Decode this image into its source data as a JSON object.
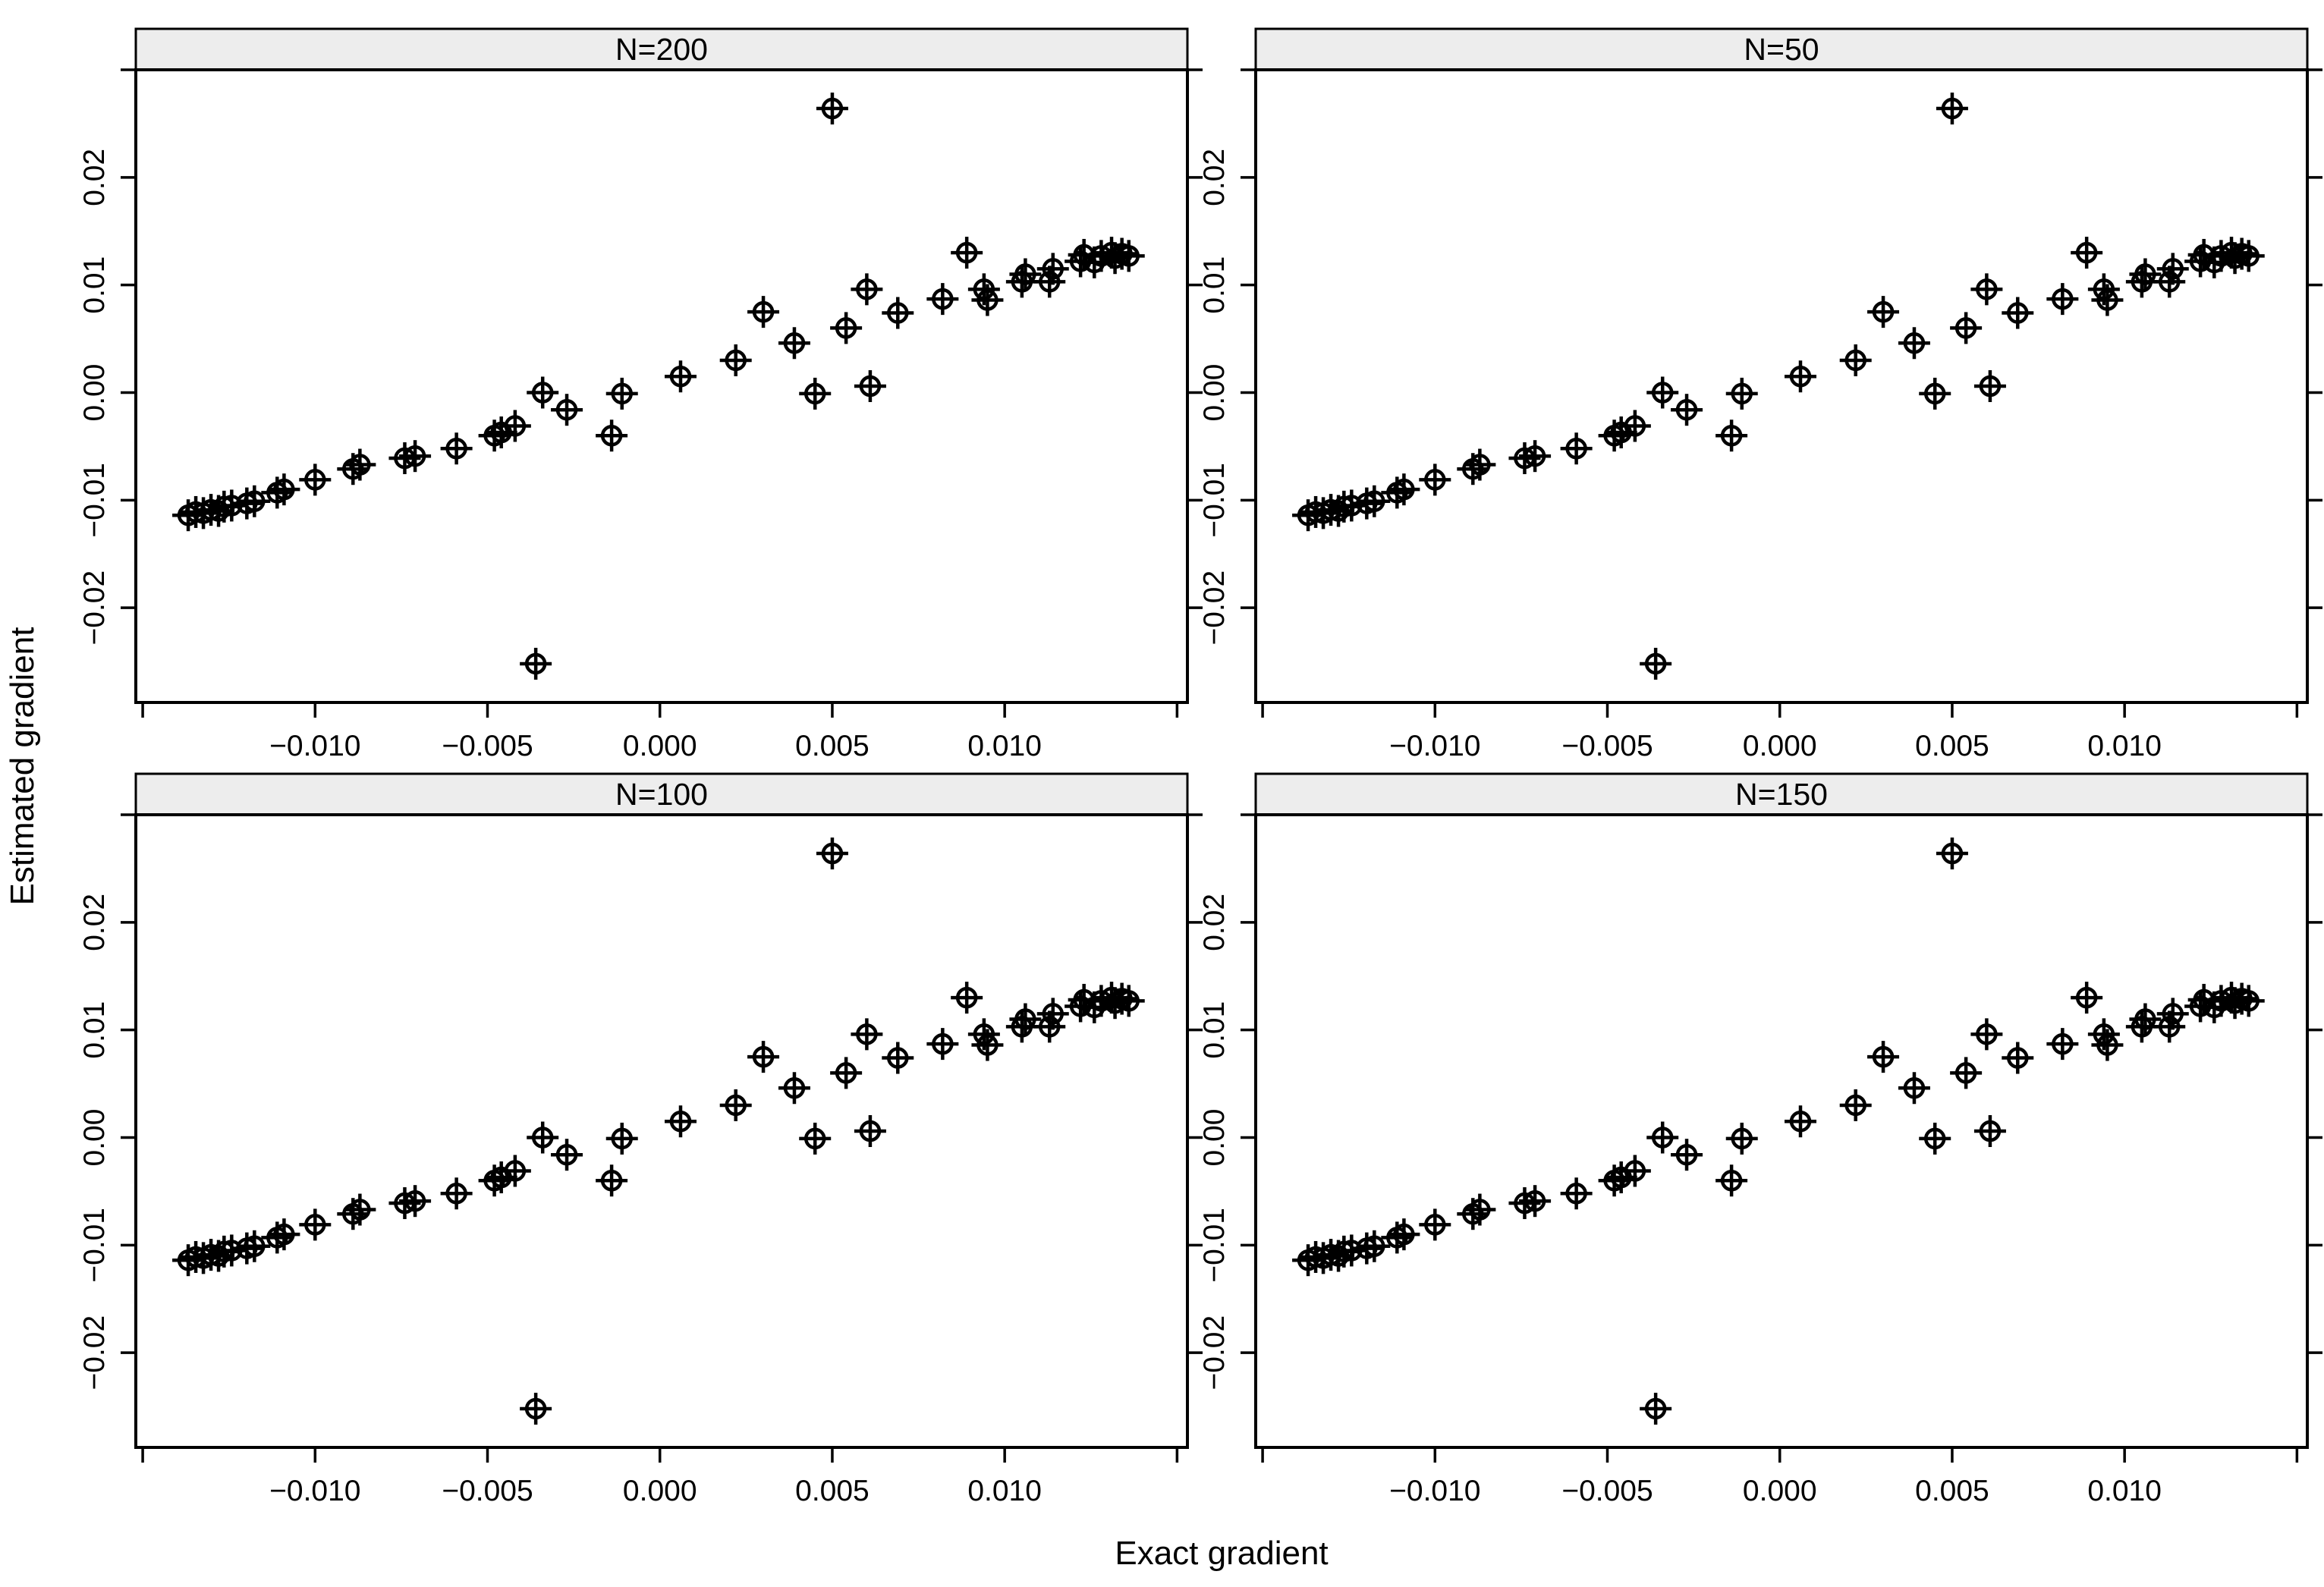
{
  "figure": {
    "background": "#ffffff",
    "strip_fill": "#ededed",
    "stroke_color": "#000000"
  },
  "chart_data": {
    "type": "scatter",
    "layout": "2x2-trellis",
    "title": "",
    "xlabel": "Exact gradient",
    "ylabel": "Estimated gradient",
    "xlim": [
      -0.0152,
      0.0153
    ],
    "ylim": [
      -0.0288,
      0.03
    ],
    "x_ticks": [
      -0.01,
      -0.005,
      0.0,
      0.005,
      0.01
    ],
    "x_tick_labels": [
      "−0.010",
      "−0.005",
      "0.000",
      "0.005",
      "0.010"
    ],
    "x_ticks_unlabeled": [
      -0.015,
      0.015
    ],
    "y_ticks": [
      -0.02,
      -0.01,
      0.0,
      0.01,
      0.02
    ],
    "y_tick_labels": [
      "−0.02",
      "−0.01",
      "0.00",
      "0.01",
      "0.02"
    ],
    "y_ticks_unlabeled": [
      -0.03,
      0.03
    ],
    "marker": "circle-plus",
    "grid": "off",
    "legend": "none",
    "panels": [
      {
        "label": "N=200",
        "position": "top-left"
      },
      {
        "label": "N=50",
        "position": "top-right"
      },
      {
        "label": "N=100",
        "position": "bottom-left"
      },
      {
        "label": "N=150",
        "position": "bottom-right"
      }
    ],
    "points_note": "identical point set rendered in every panel",
    "points": [
      [
        -0.01368,
        -0.0114
      ],
      [
        -0.01346,
        -0.0111
      ],
      [
        -0.01324,
        -0.0112
      ],
      [
        -0.01302,
        -0.0109
      ],
      [
        -0.0128,
        -0.011
      ],
      [
        -0.01264,
        -0.0106
      ],
      [
        -0.01242,
        -0.0105
      ],
      [
        -0.01198,
        -0.0103
      ],
      [
        -0.01176,
        -0.0101
      ],
      [
        -0.0111,
        -0.0093
      ],
      [
        -0.0109,
        -0.009
      ],
      [
        -0.01,
        -0.0081
      ],
      [
        -0.0089,
        -0.0071
      ],
      [
        -0.0087,
        -0.0067
      ],
      [
        -0.0074,
        -0.0061
      ],
      [
        -0.0071,
        -0.0059
      ],
      [
        -0.0059,
        -0.0052
      ],
      [
        -0.0048,
        -0.004
      ],
      [
        -0.0046,
        -0.0037
      ],
      [
        -0.0042,
        -0.0031
      ],
      [
        -0.0034,
        0.0
      ],
      [
        -0.0027,
        -0.0016
      ],
      [
        -0.0014,
        -0.004
      ],
      [
        -0.0011,
        -0.0001
      ],
      [
        0.0006,
        0.0015
      ],
      [
        0.0022,
        0.003
      ],
      [
        0.003,
        0.0075
      ],
      [
        0.0039,
        0.0046
      ],
      [
        0.0045,
        -0.0001
      ],
      [
        0.0054,
        0.006
      ],
      [
        0.006,
        0.0096
      ],
      [
        0.0061,
        0.0006
      ],
      [
        0.0069,
        0.0074
      ],
      [
        0.0082,
        0.0087
      ],
      [
        0.0089,
        0.013
      ],
      [
        0.0094,
        0.0096
      ],
      [
        0.0095,
        0.0086
      ],
      [
        0.0105,
        0.0103
      ],
      [
        0.0106,
        0.011
      ],
      [
        0.0113,
        0.0103
      ],
      [
        0.0114,
        0.0115
      ],
      [
        0.0122,
        0.0122
      ],
      [
        0.0123,
        0.0128
      ],
      [
        0.0126,
        0.0121
      ],
      [
        0.0128,
        0.0127
      ],
      [
        0.0131,
        0.013
      ],
      [
        0.0132,
        0.0125
      ],
      [
        0.0134,
        0.0129
      ],
      [
        0.0136,
        0.0127
      ],
      [
        0.005,
        0.0264
      ],
      [
        -0.0036,
        -0.0252
      ]
    ]
  }
}
